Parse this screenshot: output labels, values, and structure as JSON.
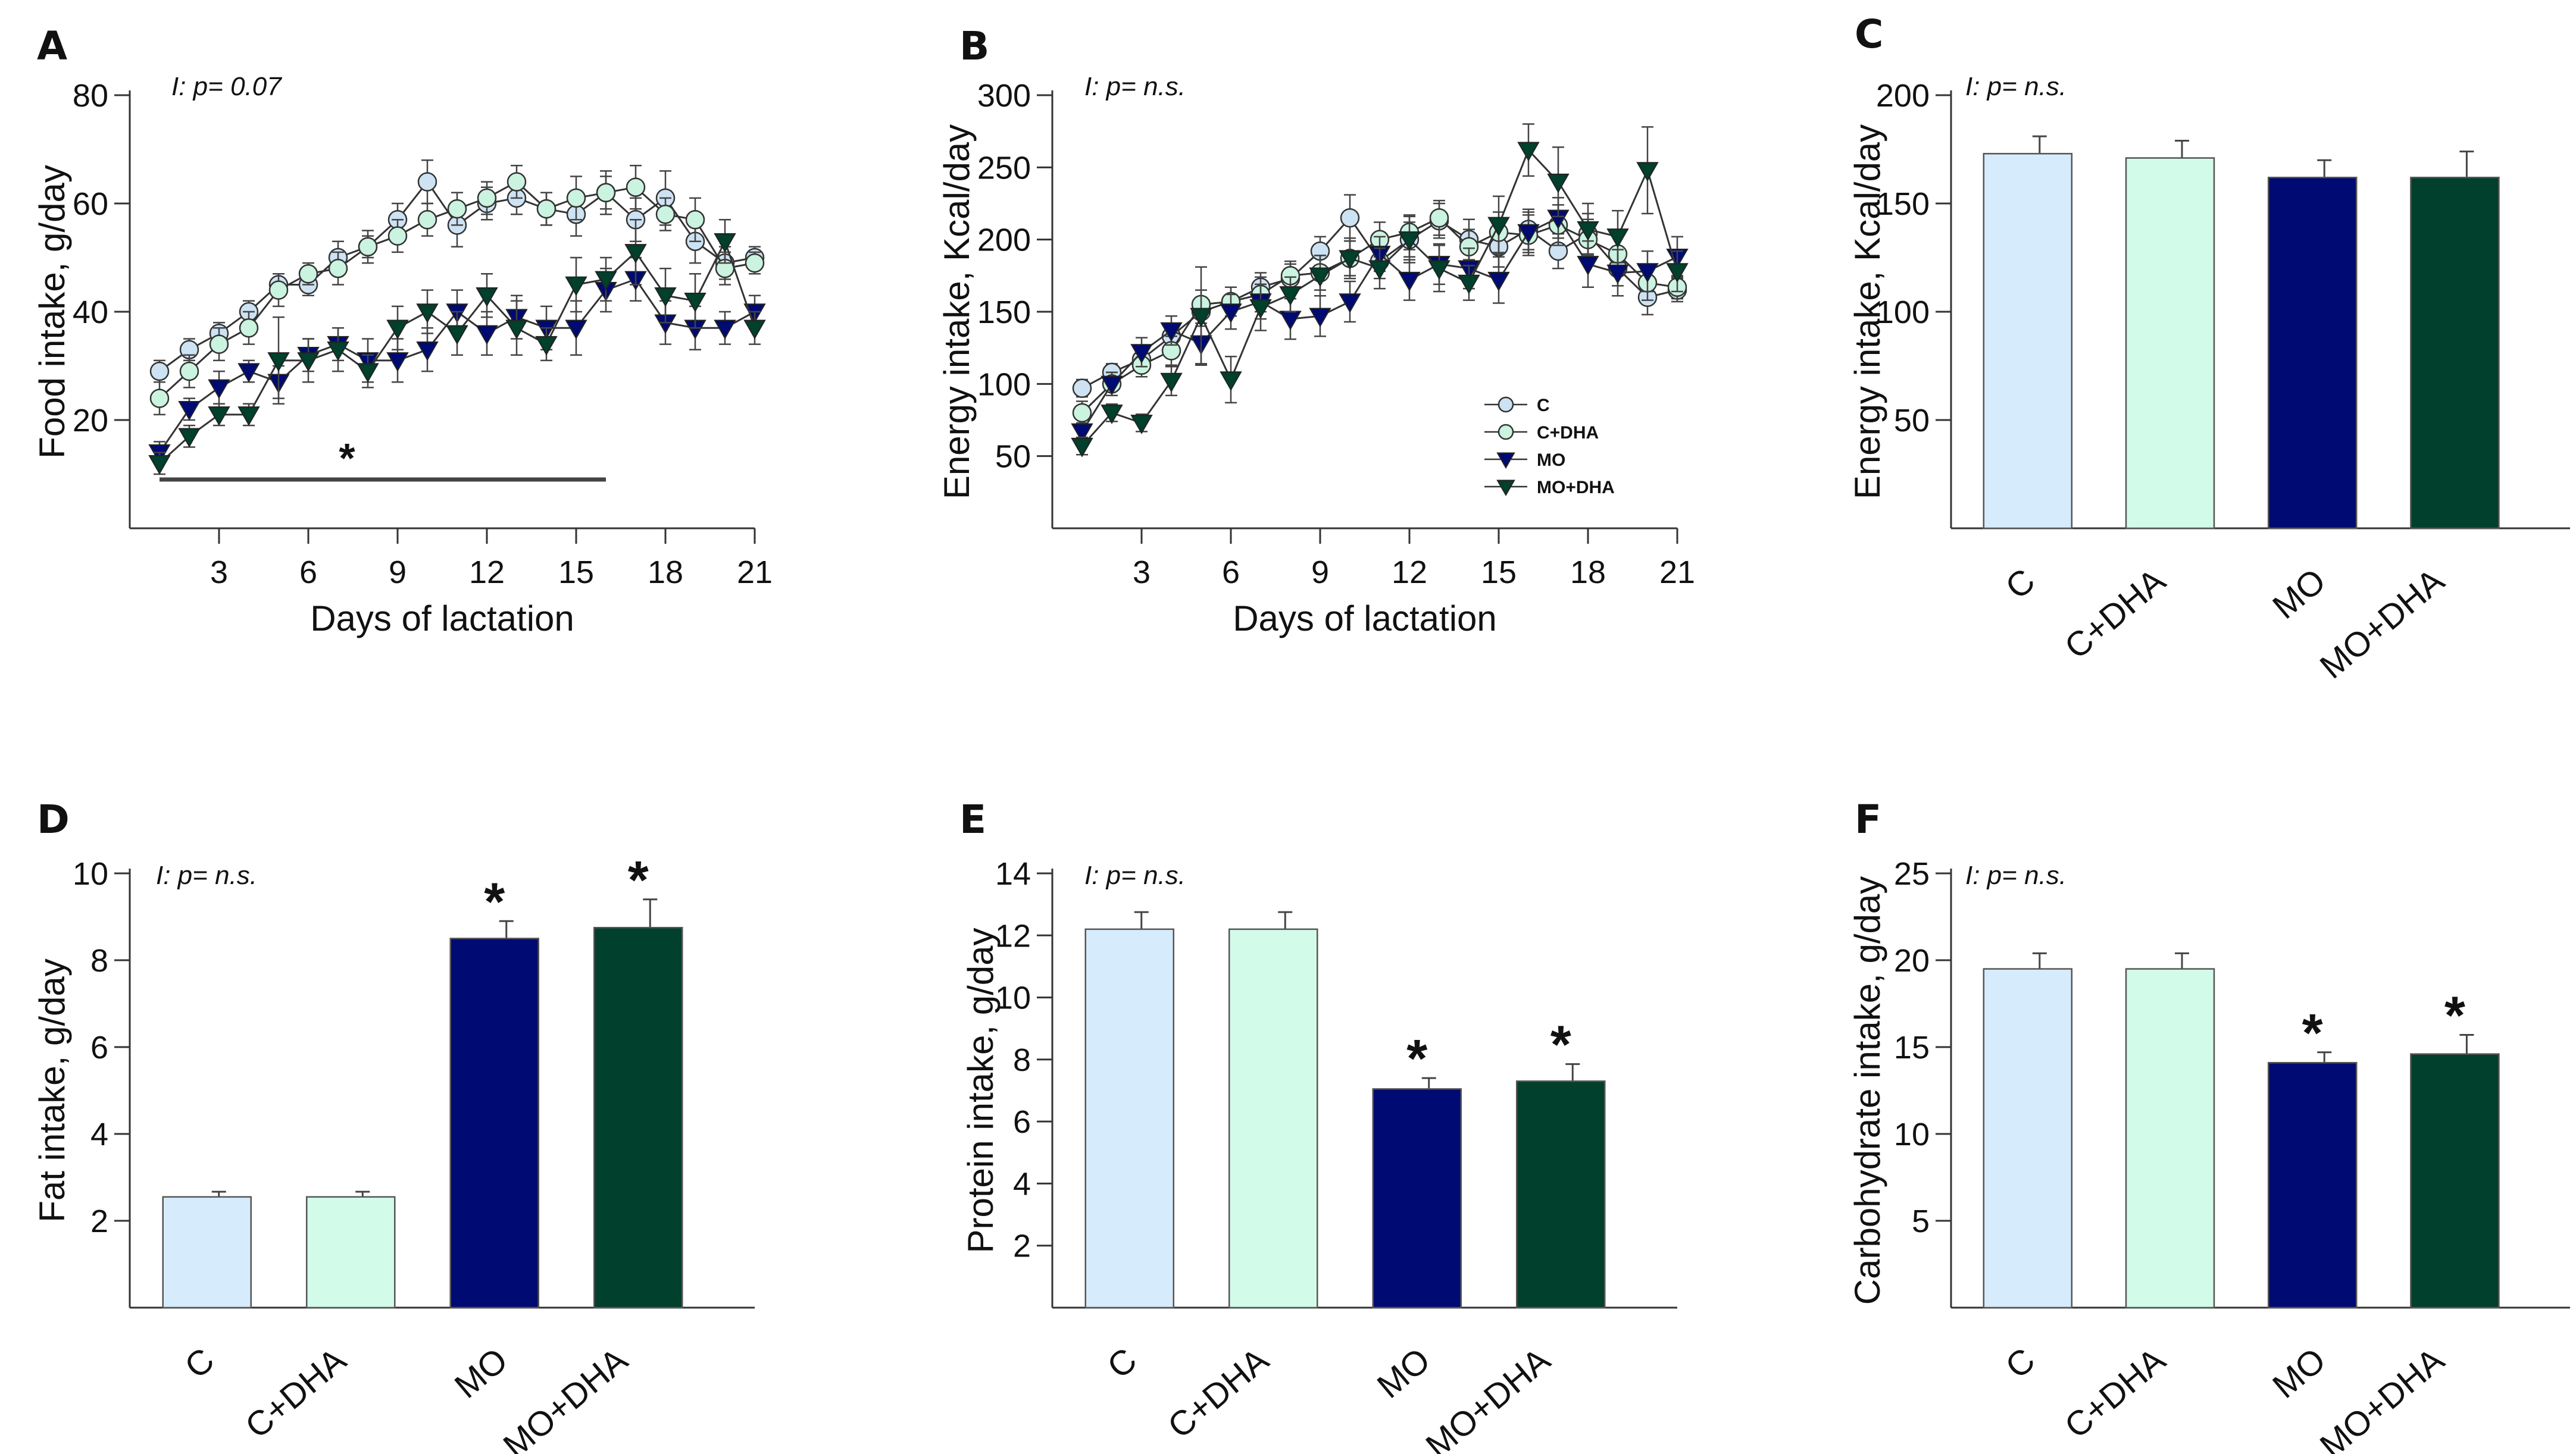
{
  "colors": {
    "C": "#d6ebfb",
    "C+DHA": "#d2fbea",
    "MO": "#000a73",
    "MO+DHA": "#00402c",
    "C_marker": "#cde3f3",
    "C+DHA_marker": "#caf3e0"
  },
  "chart_data": [
    {
      "panel": "A",
      "type": "line",
      "note": "I: p= 0.07",
      "xlabel": "Days of lactation",
      "ylabel": "Food intake, g/day",
      "xlim": [
        0,
        21
      ],
      "ylim": [
        0,
        80
      ],
      "xticks": [
        "3",
        "6",
        "9",
        "12",
        "15",
        "18",
        "21"
      ],
      "yticks": [
        "20",
        "40",
        "60",
        "80"
      ],
      "x": [
        1,
        2,
        3,
        4,
        5,
        6,
        7,
        8,
        9,
        10,
        11,
        12,
        13,
        14,
        15,
        16,
        17,
        18,
        19,
        20,
        21
      ],
      "series": [
        {
          "name": "C",
          "marker": "circle",
          "values": [
            29,
            33,
            36,
            40,
            45,
            45,
            50,
            52,
            57,
            64,
            56,
            60,
            61,
            59,
            58,
            62,
            57,
            61,
            53,
            49,
            50
          ],
          "err": [
            2,
            2,
            2,
            2,
            2,
            2,
            3,
            2,
            3,
            4,
            4,
            3,
            3,
            3,
            4,
            4,
            4,
            5,
            4,
            3,
            2
          ]
        },
        {
          "name": "C+DHA",
          "marker": "circle",
          "values": [
            24,
            29,
            34,
            37,
            44,
            47,
            48,
            52,
            54,
            57,
            59,
            61,
            64,
            59,
            61,
            62,
            63,
            58,
            57,
            48,
            49
          ],
          "err": [
            3,
            3,
            3,
            3,
            3,
            2,
            3,
            3,
            3,
            3,
            3,
            3,
            3,
            3,
            4,
            3,
            4,
            3,
            4,
            3,
            2
          ]
        },
        {
          "name": "MO",
          "marker": "triangle-down",
          "values": [
            14,
            22,
            26,
            29,
            27,
            32,
            34,
            31,
            31,
            33,
            40,
            36,
            39,
            37,
            37,
            44,
            46,
            38,
            37,
            37,
            40
          ],
          "err": [
            2,
            2,
            3,
            2,
            3,
            3,
            3,
            4,
            4,
            4,
            4,
            4,
            4,
            4,
            5,
            4,
            4,
            4,
            4,
            3,
            3
          ]
        },
        {
          "name": "MO+DHA",
          "marker": "triangle-down",
          "values": [
            12,
            17,
            21,
            21,
            31,
            31,
            33,
            29,
            37,
            40,
            36,
            43,
            37,
            34,
            45,
            46,
            51,
            43,
            42,
            53,
            37
          ],
          "err": [
            2,
            2,
            2,
            2,
            8,
            4,
            4,
            3,
            4,
            4,
            4,
            4,
            5,
            3,
            5,
            4,
            6,
            5,
            5,
            4,
            3
          ]
        }
      ],
      "significance_line": {
        "from": 1,
        "to": 16,
        "label": "*"
      }
    },
    {
      "panel": "B",
      "type": "line",
      "note": "I: p= n.s.",
      "xlabel": "Days of lactation",
      "ylabel": "Energy intake, Kcal/day",
      "xlim": [
        0,
        21
      ],
      "ylim": [
        0,
        300
      ],
      "xticks": [
        "3",
        "6",
        "9",
        "12",
        "15",
        "18",
        "21"
      ],
      "yticks": [
        "50",
        "100",
        "150",
        "200",
        "250",
        "300"
      ],
      "x": [
        1,
        2,
        3,
        4,
        5,
        6,
        7,
        8,
        9,
        10,
        11,
        12,
        13,
        14,
        15,
        16,
        17,
        18,
        19,
        20,
        21
      ],
      "legend": [
        "C",
        "C+DHA",
        "MO",
        "MO+DHA"
      ],
      "series": [
        {
          "name": "C",
          "marker": "circle",
          "values": [
            97,
            108,
            117,
            133,
            150,
            157,
            167,
            173,
            192,
            215,
            185,
            200,
            213,
            200,
            195,
            207,
            192,
            204,
            180,
            160,
            165
          ],
          "err": [
            6,
            6,
            8,
            8,
            10,
            10,
            10,
            10,
            10,
            16,
            12,
            12,
            12,
            14,
            14,
            14,
            12,
            14,
            12,
            12,
            8
          ]
        },
        {
          "name": "C+DHA",
          "marker": "circle",
          "values": [
            80,
            100,
            113,
            123,
            155,
            157,
            162,
            175,
            177,
            187,
            200,
            205,
            215,
            195,
            205,
            203,
            210,
            200,
            190,
            170,
            167
          ],
          "err": [
            8,
            8,
            8,
            10,
            10,
            10,
            12,
            10,
            12,
            12,
            12,
            12,
            12,
            12,
            14,
            14,
            14,
            14,
            14,
            12,
            8
          ]
        },
        {
          "name": "MO",
          "marker": "triangle-down",
          "values": [
            67,
            100,
            122,
            137,
            128,
            150,
            157,
            145,
            147,
            157,
            190,
            172,
            183,
            180,
            172,
            205,
            215,
            183,
            177,
            178,
            188
          ],
          "err": [
            6,
            8,
            10,
            10,
            14,
            12,
            12,
            14,
            14,
            14,
            12,
            14,
            14,
            14,
            16,
            14,
            14,
            16,
            16,
            14,
            14
          ]
        },
        {
          "name": "MO+DHA",
          "marker": "triangle-down",
          "values": [
            57,
            80,
            73,
            102,
            147,
            103,
            153,
            162,
            175,
            187,
            180,
            200,
            180,
            170,
            210,
            262,
            240,
            207,
            202,
            248,
            178
          ],
          "err": [
            6,
            6,
            6,
            10,
            34,
            16,
            16,
            12,
            14,
            14,
            14,
            16,
            16,
            12,
            20,
            18,
            24,
            18,
            18,
            30,
            14
          ]
        }
      ]
    },
    {
      "panel": "C",
      "type": "bar",
      "note": "I: p= n.s.",
      "xlabel": "",
      "ylabel": "Energy intake, Kcal/day",
      "ylim": [
        0,
        200
      ],
      "yticks": [
        "50",
        "100",
        "150",
        "200"
      ],
      "categories": [
        "C",
        "C+DHA",
        "MO",
        "MO+DHA"
      ],
      "values": [
        173,
        171,
        162,
        162
      ],
      "err": [
        8,
        8,
        8,
        12
      ],
      "stars": [
        "",
        "",
        "",
        ""
      ]
    },
    {
      "panel": "D",
      "type": "bar",
      "note": "I: p= n.s.",
      "xlabel": "",
      "ylabel": "Fat intake, g/day",
      "ylim": [
        0,
        10
      ],
      "yticks": [
        "2",
        "4",
        "6",
        "8",
        "10"
      ],
      "categories": [
        "C",
        "C+DHA",
        "MO",
        "MO+DHA"
      ],
      "values": [
        2.55,
        2.55,
        8.5,
        8.75
      ],
      "err": [
        0.12,
        0.12,
        0.4,
        0.65
      ],
      "stars": [
        "",
        "",
        "*",
        "*"
      ]
    },
    {
      "panel": "E",
      "type": "bar",
      "note": "I: p= n.s.",
      "xlabel": "",
      "ylabel": "Protein intake, g/day",
      "ylim": [
        0,
        14
      ],
      "yticks": [
        "2",
        "4",
        "6",
        "8",
        "10",
        "12",
        "14"
      ],
      "categories": [
        "C",
        "C+DHA",
        "MO",
        "MO+DHA"
      ],
      "values": [
        12.2,
        12.2,
        7.05,
        7.3
      ],
      "err": [
        0.55,
        0.55,
        0.35,
        0.55
      ],
      "stars": [
        "",
        "",
        "*",
        "*"
      ]
    },
    {
      "panel": "F",
      "type": "bar",
      "note": "I: p= n.s.",
      "xlabel": "",
      "ylabel": "Carbohydrate intake, g/day",
      "ylim": [
        0,
        25
      ],
      "yticks": [
        "5",
        "10",
        "15",
        "20",
        "25"
      ],
      "categories": [
        "C",
        "C+DHA",
        "MO",
        "MO+DHA"
      ],
      "values": [
        19.5,
        19.5,
        14.1,
        14.6
      ],
      "err": [
        0.9,
        0.9,
        0.6,
        1.1
      ],
      "stars": [
        "",
        "",
        "*",
        "*"
      ]
    }
  ]
}
